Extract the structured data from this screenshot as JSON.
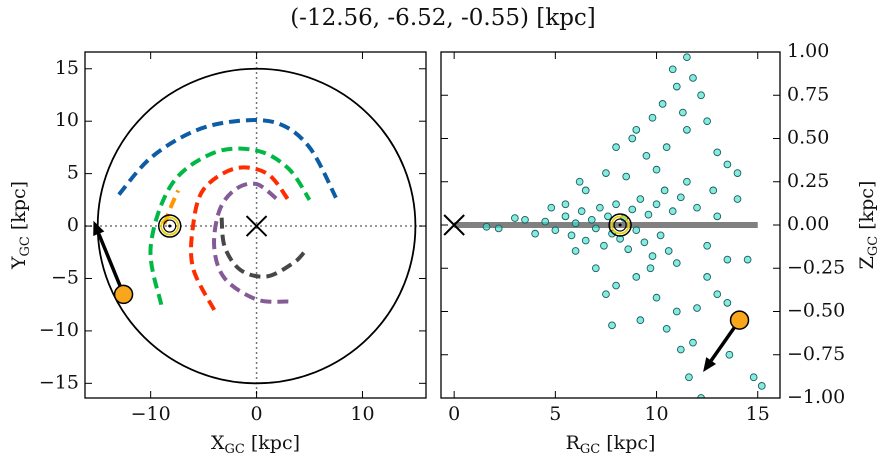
{
  "title": "(-12.56, -6.52, -0.55) [kpc]",
  "chart_data": [
    {
      "type": "line",
      "xlabel": [
        "X",
        "GC",
        " [kpc]"
      ],
      "ylabel": [
        "Y",
        "GC",
        " [kpc]"
      ],
      "xlim": [
        -16.2,
        16.0
      ],
      "ylim": [
        -16.4,
        16.6
      ],
      "xticks": [
        {
          "value": -10,
          "label": "−10"
        },
        0,
        10
      ],
      "yticks": [
        {
          "value": -15,
          "label": "−15"
        },
        {
          "value": -10,
          "label": "−10"
        },
        {
          "value": -5,
          "label": "−5"
        },
        0,
        5,
        10,
        15
      ],
      "circle_radius": 15,
      "series": [
        {
          "color": "#0c5da5",
          "x": [
            -13,
            -10,
            -6,
            -2,
            2,
            5,
            7.5
          ],
          "y": [
            3,
            6.5,
            9,
            10,
            9.8,
            7.5,
            2.7
          ]
        },
        {
          "color": "#00b945",
          "x": [
            -9,
            -10,
            -8,
            -4,
            0,
            3,
            5
          ],
          "y": [
            -7.5,
            -2,
            4,
            7,
            7.2,
            5.5,
            2.5
          ]
        },
        {
          "color": "#ff2c00",
          "x": [
            -4,
            -6,
            -6,
            -5,
            -2,
            1,
            3
          ],
          "y": [
            -8,
            -4,
            0,
            3.5,
            5.5,
            5,
            2.5
          ]
        },
        {
          "color": "#845b97",
          "x": [
            3,
            0,
            -3,
            -4,
            -3.5,
            -2,
            0,
            2
          ],
          "y": [
            -7.2,
            -7,
            -5,
            -2,
            1.5,
            3.5,
            4,
            2.5
          ]
        },
        {
          "color": "#474747",
          "x": [
            -3.3,
            -3,
            -1.5,
            1,
            3.5,
            4.5
          ],
          "y": [
            0.8,
            -2,
            -4.2,
            -4.8,
            -3.5,
            -2.5
          ]
        },
        {
          "color": "#ff9500",
          "x": [
            -8.7,
            -8.1,
            -7.4
          ],
          "y": [
            0.2,
            1.8,
            3.4
          ]
        }
      ],
      "galactic_center": {
        "x": 0,
        "y": 0
      },
      "sun": {
        "x": -8.2,
        "y": 0
      },
      "target": {
        "x": -12.56,
        "y": -6.52
      },
      "arrow_to": {
        "x": -15.4,
        "y": 0.5
      }
    },
    {
      "type": "scatter",
      "xlabel": [
        "R",
        "GC",
        " [kpc]"
      ],
      "ylabel": [
        "Z",
        "GC",
        " [kpc]"
      ],
      "xlim": [
        -0.65,
        16.1
      ],
      "ylim": [
        -1,
        1
      ],
      "xticks": [
        0,
        5,
        10,
        15
      ],
      "yticks": [
        {
          "value": -1,
          "label": "−1.00"
        },
        {
          "value": -0.75,
          "label": "−0.75"
        },
        {
          "value": -0.5,
          "label": "−0.50"
        },
        {
          "value": -0.25,
          "label": "−0.25"
        },
        {
          "value": 0,
          "label": "0.00"
        },
        {
          "value": 0.25,
          "label": "0.25"
        },
        {
          "value": 0.5,
          "label": "0.50"
        },
        {
          "value": 0.75,
          "label": "0.75"
        },
        {
          "value": 1,
          "label": "1.00"
        }
      ],
      "color": "#40e0d0",
      "x": [
        4.5,
        5,
        5.5,
        5.8,
        6,
        6.3,
        6.5,
        6.8,
        7,
        7.2,
        7.4,
        7.6,
        7.8,
        8,
        8.2,
        8.4,
        8.6,
        8.8,
        9,
        9.2,
        9.4,
        9.6,
        9.8,
        10,
        10.2,
        10.4,
        10.6,
        10.8,
        11,
        11.2,
        3.5,
        4,
        2.2,
        3,
        1.6,
        12,
        12.5,
        13,
        13.5,
        14,
        6.5,
        7,
        7.5,
        8,
        8.5,
        9,
        9.5,
        10,
        10.5,
        11,
        11.5,
        12,
        12.5,
        13,
        13.5,
        9,
        9.8,
        10.3,
        11,
        11.3,
        11.8,
        11.5,
        12.2,
        10.8,
        8.8,
        9.2,
        10.5,
        11.2,
        11.8,
        12.5,
        13,
        13.5,
        14,
        14.5,
        8,
        7.5,
        6,
        5.5,
        4.8,
        13.6,
        14.8,
        15.2,
        11.6,
        12.2,
        7.8,
        10,
        9.7,
        12.8,
        6.2,
        11.5
      ],
      "y": [
        0.02,
        -0.03,
        0.05,
        -0.06,
        0.01,
        0.08,
        -0.09,
        0.03,
        -0.02,
        0.1,
        -0.12,
        0.05,
        -0.05,
        0.12,
        -0.08,
        0.04,
        -0.14,
        0.09,
        -0.03,
        0.15,
        -0.1,
        0.06,
        -0.18,
        0.12,
        -0.06,
        0.2,
        -0.15,
        0.08,
        -0.22,
        0.16,
        0.03,
        -0.05,
        -0.02,
        0.04,
        -0.01,
        0.1,
        -0.12,
        0.05,
        -0.2,
        0.15,
        0.2,
        -0.25,
        0.3,
        -0.35,
        0.28,
        -0.3,
        0.4,
        -0.42,
        0.45,
        -0.5,
        0.55,
        -0.48,
        0.6,
        -0.4,
        0.35,
        0.55,
        0.62,
        0.7,
        0.8,
        0.65,
        0.85,
        0.97,
        0.75,
        0.9,
        0.5,
        -0.55,
        -0.6,
        -0.72,
        -0.68,
        -0.3,
        0.42,
        -0.45,
        0.3,
        -0.2,
        0.45,
        -0.4,
        -0.15,
        0.12,
        0.1,
        -0.75,
        -0.88,
        -0.93,
        -0.88,
        -1.0,
        -0.58,
        0.32,
        -0.25,
        0.2,
        0.25,
        0.25
      ],
      "disk_z": 0,
      "disk_r": [
        0,
        15
      ],
      "galactic_center": {
        "x": 0,
        "y": 0
      },
      "sun": {
        "x": 8.2,
        "y": 0
      },
      "target": {
        "x": 14.1,
        "y": -0.55
      },
      "arrow_to": {
        "x": 12.3,
        "y": -0.85
      }
    }
  ]
}
